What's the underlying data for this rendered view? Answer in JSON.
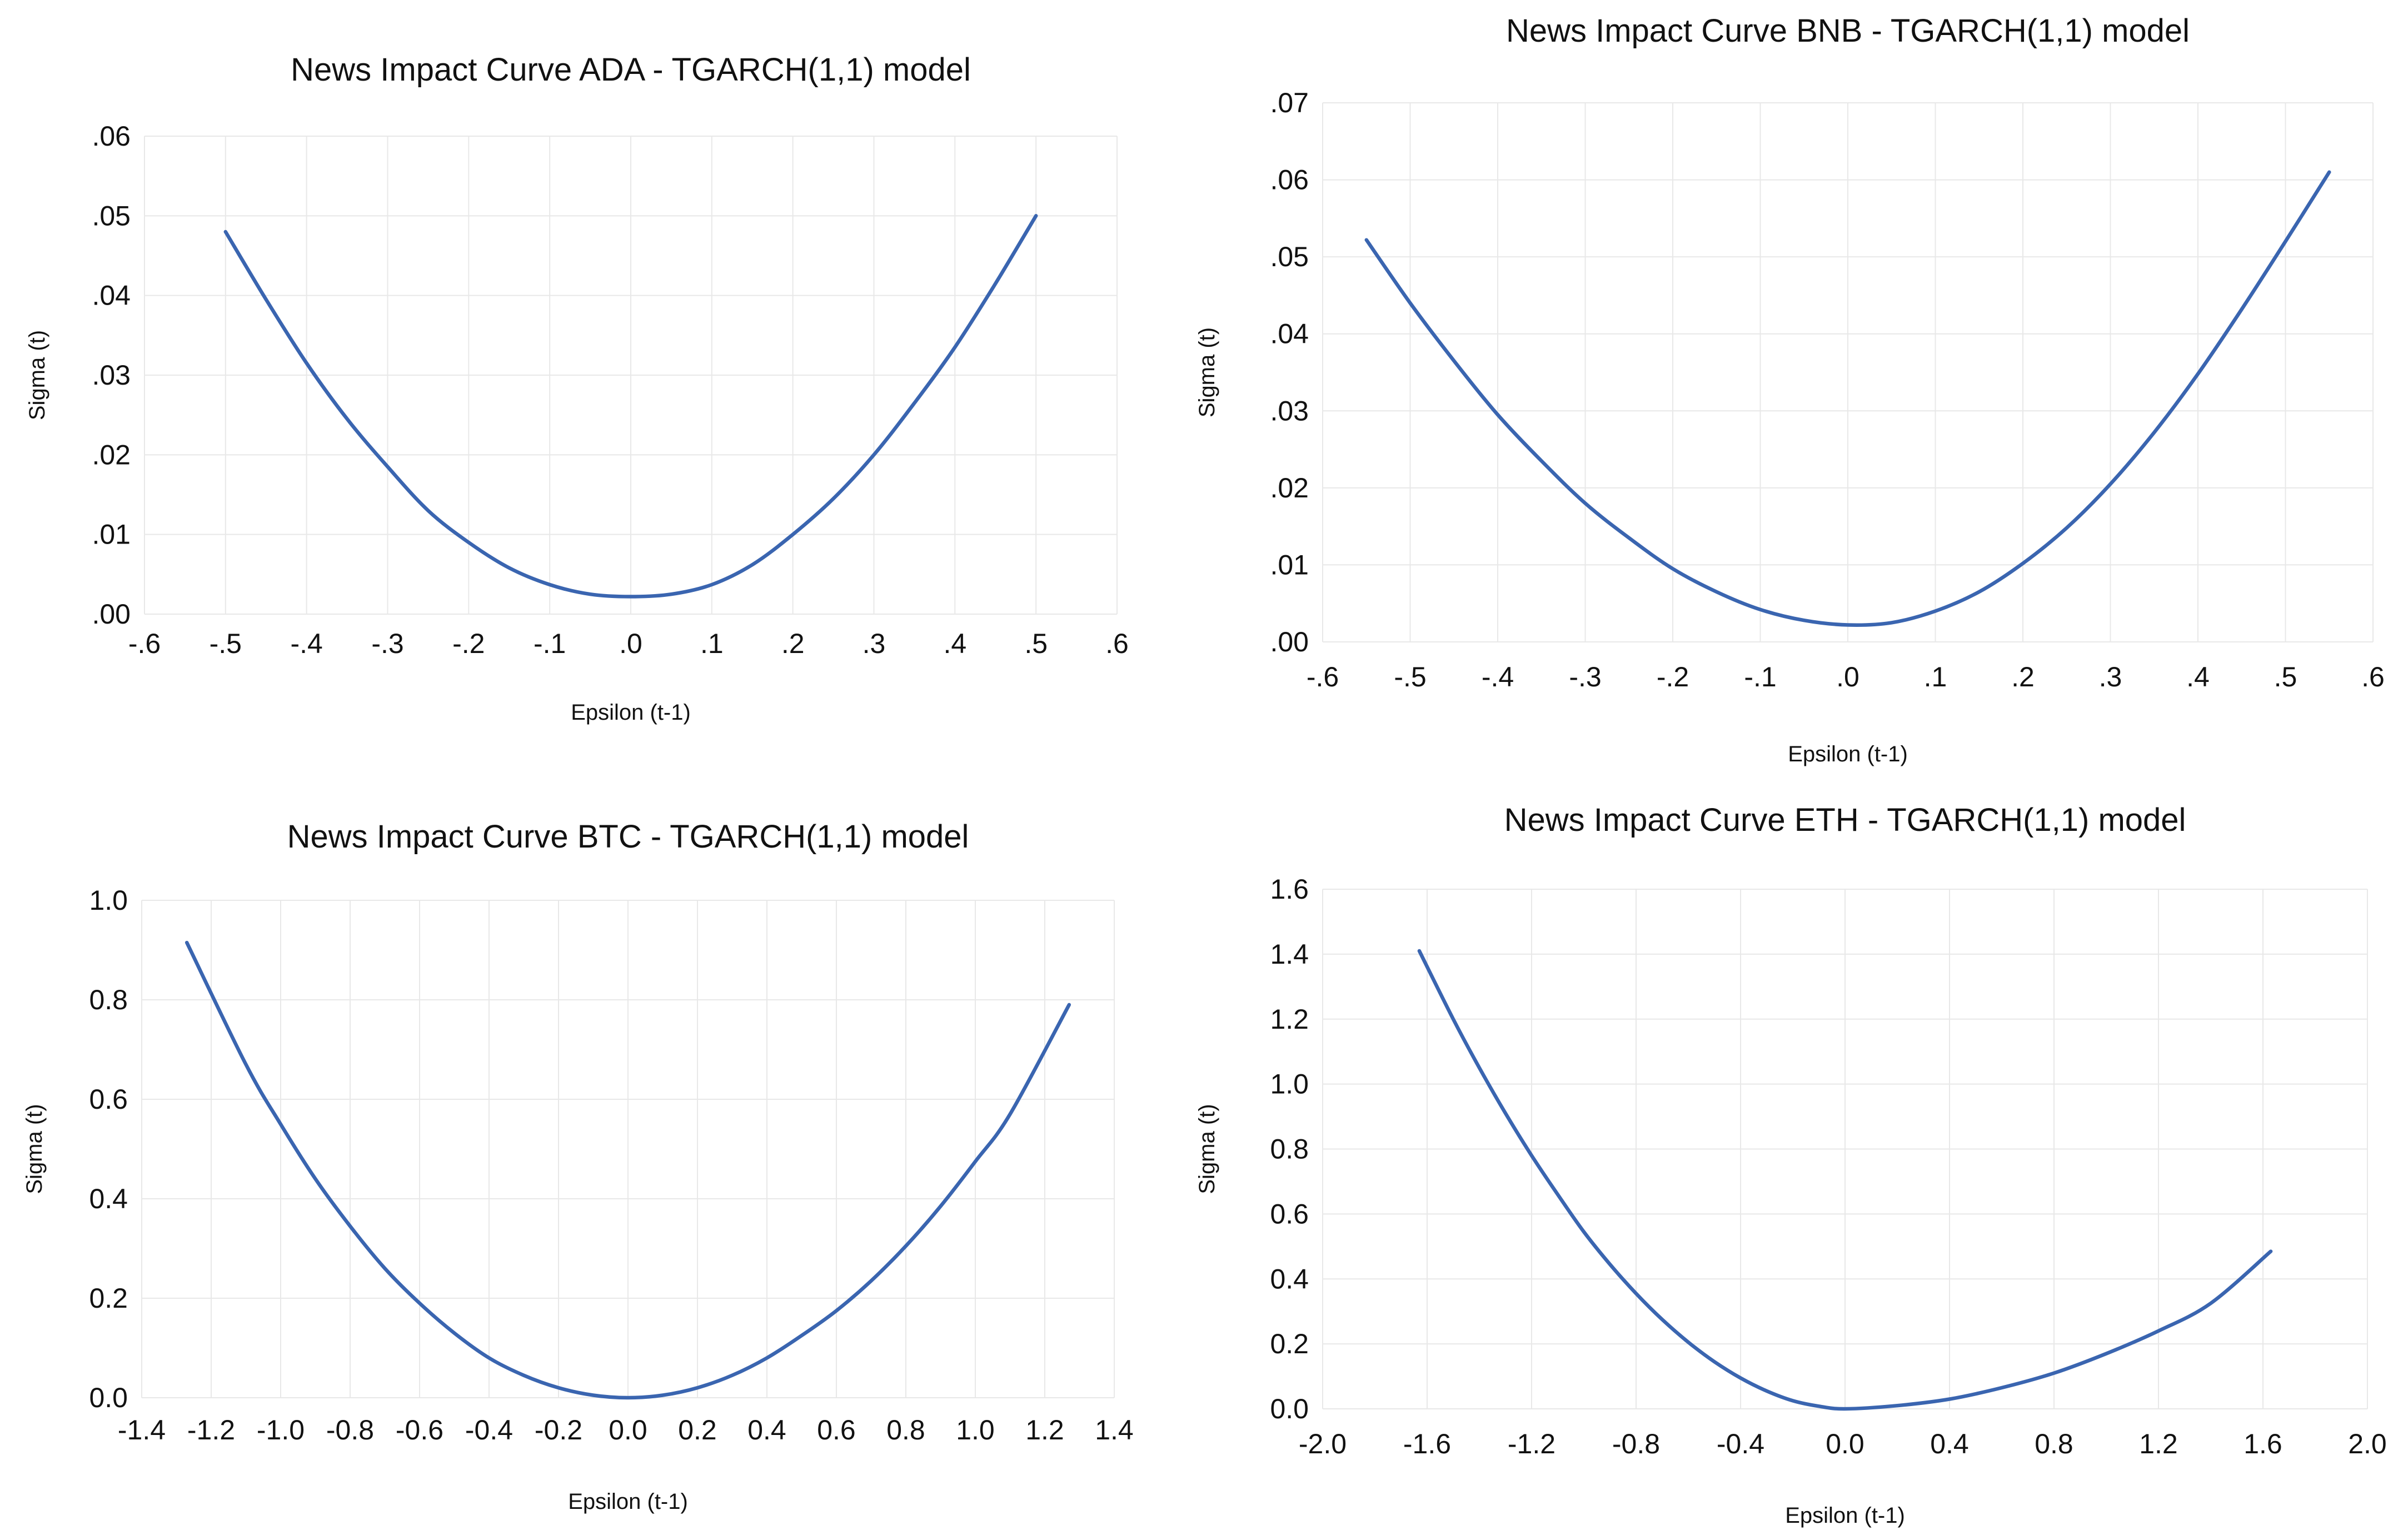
{
  "chart_data": [
    {
      "type": "line",
      "title": "News Impact Curve ADA - TGARCH(1,1) model",
      "xlabel": "Epsilon (t-1)",
      "ylabel": "Sigma (t)",
      "xlim": [
        -0.6,
        0.6
      ],
      "ylim": [
        0,
        0.06
      ],
      "xticks": [
        "-.6",
        "-.5",
        "-.4",
        "-.3",
        "-.2",
        "-.1",
        ".0",
        ".1",
        ".2",
        ".3",
        ".4",
        ".5",
        ".6"
      ],
      "yticks": [
        ".00",
        ".01",
        ".02",
        ".03",
        ".04",
        ".05",
        ".06"
      ],
      "grid": true,
      "series": [
        {
          "x": [
            -0.5,
            -0.45,
            -0.4,
            -0.35,
            -0.3,
            -0.25,
            -0.2,
            -0.15,
            -0.1,
            -0.05,
            0.0,
            0.05,
            0.1,
            0.15,
            0.2,
            0.25,
            0.3,
            0.35,
            0.4,
            0.45,
            0.5
          ],
          "y": [
            0.048,
            0.0395,
            0.0315,
            0.0245,
            0.0185,
            0.013,
            0.009,
            0.0058,
            0.0037,
            0.0025,
            0.0022,
            0.0025,
            0.0037,
            0.0062,
            0.01,
            0.0145,
            0.02,
            0.0265,
            0.0335,
            0.0415,
            0.05
          ]
        }
      ]
    },
    {
      "type": "line",
      "title": "News Impact Curve BNB - TGARCH(1,1) model",
      "xlabel": "Epsilon (t-1)",
      "ylabel": "Sigma (t)",
      "xlim": [
        -0.6,
        0.6
      ],
      "ylim": [
        0,
        0.07
      ],
      "xticks": [
        "-.6",
        "-.5",
        "-.4",
        "-.3",
        "-.2",
        "-.1",
        ".0",
        ".1",
        ".2",
        ".3",
        ".4",
        ".5",
        ".6"
      ],
      "yticks": [
        ".00",
        ".01",
        ".02",
        ".03",
        ".04",
        ".05",
        ".06",
        ".07"
      ],
      "grid": true,
      "series": [
        {
          "x": [
            -0.55,
            -0.5,
            -0.45,
            -0.4,
            -0.35,
            -0.3,
            -0.25,
            -0.2,
            -0.15,
            -0.1,
            -0.05,
            0.0,
            0.05,
            0.1,
            0.15,
            0.2,
            0.25,
            0.3,
            0.35,
            0.4,
            0.45,
            0.5,
            0.55
          ],
          "y": [
            0.0522,
            0.044,
            0.0365,
            0.0295,
            0.0235,
            0.018,
            0.0135,
            0.0095,
            0.0065,
            0.0042,
            0.0028,
            0.0022,
            0.0025,
            0.004,
            0.0065,
            0.0102,
            0.0148,
            0.0205,
            0.0272,
            0.0348,
            0.0432,
            0.052,
            0.061
          ]
        }
      ]
    },
    {
      "type": "line",
      "title": "News Impact Curve BTC - TGARCH(1,1) model",
      "xlabel": "Epsilon (t-1)",
      "ylabel": "Sigma (t)",
      "xlim": [
        -1.4,
        1.4
      ],
      "ylim": [
        0,
        1.0
      ],
      "xticks": [
        "-1.4",
        "-1.2",
        "-1.0",
        "-0.8",
        "-0.6",
        "-0.4",
        "-0.2",
        "0.0",
        "0.2",
        "0.4",
        "0.6",
        "0.8",
        "1.0",
        "1.2",
        "1.4"
      ],
      "yticks": [
        "0.0",
        "0.2",
        "0.4",
        "0.6",
        "0.8",
        "1.0"
      ],
      "grid": true,
      "series": [
        {
          "x": [
            -1.27,
            -1.1,
            -1.0,
            -0.9,
            -0.8,
            -0.7,
            -0.6,
            -0.5,
            -0.4,
            -0.3,
            -0.2,
            -0.1,
            0.0,
            0.1,
            0.2,
            0.3,
            0.4,
            0.5,
            0.6,
            0.7,
            0.8,
            0.9,
            1.0,
            1.1,
            1.27
          ],
          "y": [
            0.915,
            0.67,
            0.55,
            0.44,
            0.345,
            0.26,
            0.19,
            0.13,
            0.08,
            0.045,
            0.02,
            0.005,
            0.0,
            0.005,
            0.02,
            0.045,
            0.08,
            0.125,
            0.175,
            0.235,
            0.305,
            0.385,
            0.475,
            0.57,
            0.79
          ]
        }
      ]
    },
    {
      "type": "line",
      "title": "News Impact Curve ETH - TGARCH(1,1) model",
      "xlabel": "Epsilon (t-1)",
      "ylabel": "Sigma (t)",
      "xlim": [
        -2.0,
        2.0
      ],
      "ylim": [
        0,
        1.6
      ],
      "xticks": [
        "-2.0",
        "-1.6",
        "-1.2",
        "-0.8",
        "-0.4",
        "0.0",
        "0.4",
        "0.8",
        "1.2",
        "1.6",
        "2.0"
      ],
      "yticks": [
        "0.0",
        "0.2",
        "0.4",
        "0.6",
        "0.8",
        "1.0",
        "1.2",
        "1.4",
        "1.6"
      ],
      "grid": true,
      "series": [
        {
          "x": [
            -1.63,
            -1.5,
            -1.4,
            -1.3,
            -1.2,
            -1.1,
            -1.0,
            -0.9,
            -0.8,
            -0.7,
            -0.6,
            -0.5,
            -0.4,
            -0.3,
            -0.2,
            -0.1,
            0.0,
            0.2,
            0.4,
            0.6,
            0.8,
            1.0,
            1.2,
            1.4,
            1.63
          ],
          "y": [
            1.41,
            1.2,
            1.05,
            0.91,
            0.78,
            0.66,
            0.545,
            0.445,
            0.355,
            0.275,
            0.205,
            0.145,
            0.095,
            0.055,
            0.025,
            0.008,
            0.0,
            0.01,
            0.03,
            0.065,
            0.11,
            0.17,
            0.24,
            0.325,
            0.485
          ]
        }
      ]
    }
  ]
}
